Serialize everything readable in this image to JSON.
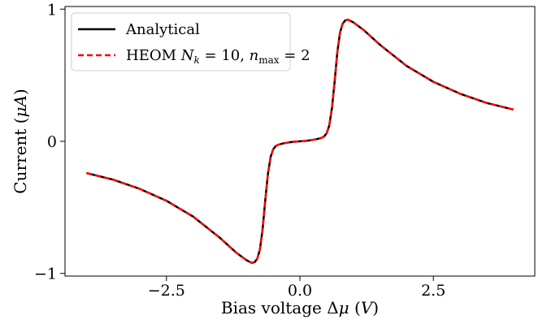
{
  "chart_data": {
    "type": "line",
    "title": "",
    "xlabel": "Bias voltage Δμ (V)",
    "ylabel": "Current (μA)",
    "xlim": [
      -4.4,
      4.4
    ],
    "ylim": [
      -1.02,
      1.02
    ],
    "xticks": [
      {
        "value": -2.5,
        "label": "−2.5"
      },
      {
        "value": 0.0,
        "label": "0.0"
      },
      {
        "value": 2.5,
        "label": "2.5"
      }
    ],
    "yticks": [
      {
        "value": -1,
        "label": "−1"
      },
      {
        "value": 0,
        "label": "0"
      },
      {
        "value": 1,
        "label": "1"
      }
    ],
    "grid": false,
    "legend_position": "top-left",
    "x": [
      -4.0,
      -3.5,
      -3.0,
      -2.5,
      -2.0,
      -1.5,
      -1.2,
      -1.0,
      -0.9,
      -0.85,
      -0.8,
      -0.75,
      -0.7,
      -0.65,
      -0.6,
      -0.55,
      -0.5,
      -0.45,
      -0.4,
      -0.3,
      -0.2,
      -0.1,
      0.0,
      0.1,
      0.2,
      0.3,
      0.4,
      0.45,
      0.5,
      0.55,
      0.6,
      0.65,
      0.7,
      0.75,
      0.8,
      0.85,
      0.9,
      1.0,
      1.2,
      1.5,
      2.0,
      2.5,
      3.0,
      3.5,
      4.0
    ],
    "series": [
      {
        "name": "Analytical",
        "color": "#000000",
        "dash": "solid",
        "values": [
          -0.24,
          -0.29,
          -0.36,
          -0.45,
          -0.57,
          -0.73,
          -0.84,
          -0.9,
          -0.92,
          -0.915,
          -0.89,
          -0.82,
          -0.67,
          -0.45,
          -0.25,
          -0.12,
          -0.06,
          -0.035,
          -0.025,
          -0.015,
          -0.008,
          -0.003,
          0.0,
          0.003,
          0.008,
          0.015,
          0.025,
          0.035,
          0.06,
          0.12,
          0.25,
          0.45,
          0.67,
          0.82,
          0.89,
          0.915,
          0.92,
          0.9,
          0.84,
          0.73,
          0.57,
          0.45,
          0.36,
          0.29,
          0.24
        ]
      },
      {
        "name": "HEOM N_k = 10, n_max = 2",
        "color": "#ff0000",
        "dash": "dashed",
        "values": [
          -0.24,
          -0.29,
          -0.36,
          -0.45,
          -0.57,
          -0.73,
          -0.84,
          -0.9,
          -0.92,
          -0.915,
          -0.89,
          -0.82,
          -0.67,
          -0.45,
          -0.25,
          -0.12,
          -0.06,
          -0.035,
          -0.025,
          -0.015,
          -0.008,
          -0.003,
          0.0,
          0.003,
          0.008,
          0.015,
          0.025,
          0.035,
          0.06,
          0.12,
          0.25,
          0.45,
          0.67,
          0.82,
          0.89,
          0.915,
          0.92,
          0.9,
          0.84,
          0.73,
          0.57,
          0.45,
          0.36,
          0.29,
          0.24
        ]
      }
    ],
    "legend": {
      "analytical": "Analytical",
      "heom_prefix": "HEOM",
      "heom_N": "N",
      "heom_k": "k",
      "heom_eq1": " = 10, ",
      "heom_n": "n",
      "heom_max": "max",
      "heom_eq2": " = 2"
    },
    "xlabel_parts": {
      "pre": "Bias voltage Δ",
      "mu": "μ",
      "mid": " (",
      "unit": "V",
      "post": ")"
    },
    "ylabel_parts": {
      "pre": "Current (",
      "mu": "μ",
      "unit": "A",
      "post": ")"
    }
  }
}
